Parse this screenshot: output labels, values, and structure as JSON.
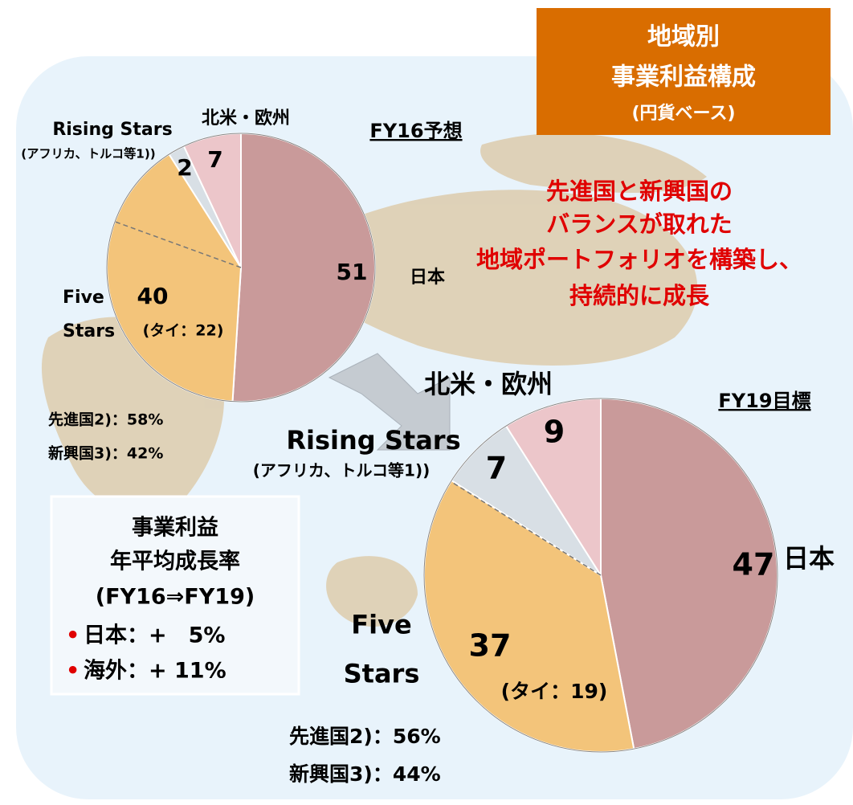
{
  "header": {
    "title_lines": [
      "地域別",
      "事業利益構成"
    ],
    "subtitle": "(円貨ベース)"
  },
  "message": [
    "先進国と新興国の",
    "バランスが取れた",
    "地域ポートフォリオを構築し、",
    "持続的に成長"
  ],
  "growth": {
    "lines": [
      "事業利益",
      "年平均成長率",
      "(FY16⇒FY19)"
    ],
    "items": [
      "日本：+　5%",
      "海外：+ 11%"
    ]
  },
  "chart_data": [
    {
      "type": "pie",
      "title": "FY16予想",
      "categories": [
        "日本",
        "Five Stars",
        "Rising Stars",
        "北米・欧州"
      ],
      "values": [
        51,
        40,
        2,
        7
      ],
      "colors": [
        "#c99a9a",
        "#f3c47a",
        "#d8dfe5",
        "#ecc6ca"
      ],
      "annotations": [
        "(タイ：22)",
        "(アフリカ、トルコ等1))",
        "先進国2)：58%",
        "新興国3)：42%"
      ]
    },
    {
      "type": "pie",
      "title": "FY19目標",
      "categories": [
        "日本",
        "Five Stars",
        "Rising Stars",
        "北米・欧州"
      ],
      "values": [
        47,
        37,
        7,
        9
      ],
      "colors": [
        "#c99a9a",
        "#f3c47a",
        "#d8dfe5",
        "#ecc6ca"
      ],
      "annotations": [
        "(タイ：19)",
        "(アフリカ、トルコ等1))",
        "先進国2)：56%",
        "新興国3)：44%"
      ]
    }
  ]
}
